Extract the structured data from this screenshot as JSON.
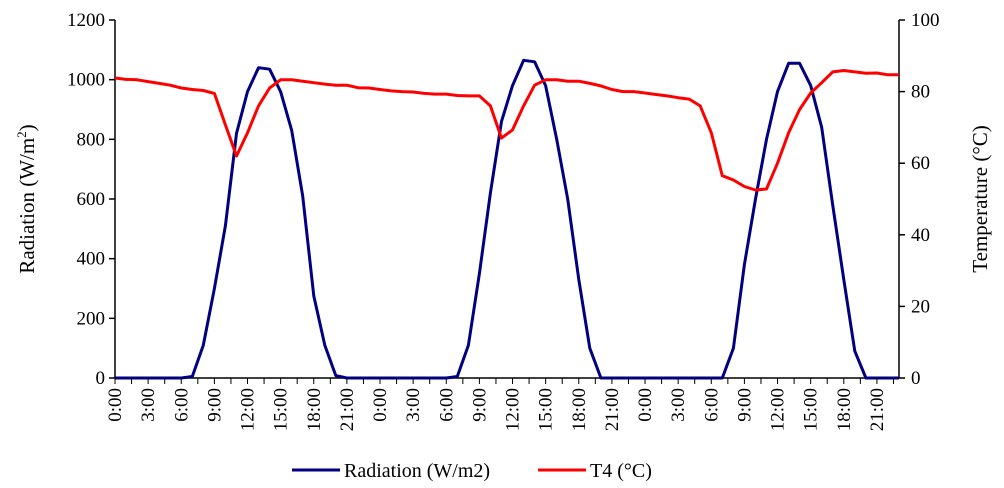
{
  "chart_data": {
    "type": "line",
    "title": "",
    "xlabel": "",
    "ylabel_left": "Radiation (W/m",
    "ylabel_left_sup": "2",
    "ylabel_left_tail": ")",
    "ylabel_right": "Temperature (°C)",
    "ylim_left": [
      0,
      1200
    ],
    "yticks_left": [
      "0",
      "200",
      "400",
      "600",
      "800",
      "1000",
      "1200"
    ],
    "ylim_right": [
      0,
      100
    ],
    "yticks_right": [
      "0",
      "20",
      "40",
      "60",
      "80",
      "100"
    ],
    "xtick_labels": [
      "0:00",
      "3:00",
      "6:00",
      "9:00",
      "12:00",
      "15:00",
      "18:00",
      "21:00",
      "0:00",
      "3:00",
      "6:00",
      "9:00",
      "12:00",
      "15:00",
      "18:00",
      "21:00",
      "0:00",
      "3:00",
      "6:00",
      "9:00",
      "12:00",
      "15:00",
      "18:00",
      "21:00"
    ],
    "x_hours_range": [
      0,
      71
    ],
    "legend_position": "bottom",
    "series": [
      {
        "name": "Radiation (W/m2)",
        "axis": "left",
        "color": "#000080",
        "x": [
          0,
          1,
          2,
          3,
          4,
          5,
          6,
          7,
          8,
          9,
          10,
          11,
          12,
          13,
          14,
          15,
          16,
          17,
          18,
          19,
          20,
          21,
          22,
          23,
          24,
          25,
          26,
          27,
          28,
          29,
          30,
          31,
          32,
          33,
          34,
          35,
          36,
          37,
          38,
          39,
          40,
          41,
          42,
          43,
          44,
          45,
          46,
          47,
          48,
          49,
          50,
          51,
          52,
          53,
          54,
          55,
          56,
          57,
          58,
          59,
          60,
          61,
          62,
          63,
          64,
          65,
          66,
          67,
          68,
          69,
          70,
          71
        ],
        "values": [
          0,
          0,
          0,
          0,
          0,
          0,
          0,
          5,
          110,
          300,
          510,
          820,
          960,
          1040,
          1035,
          960,
          830,
          610,
          275,
          110,
          8,
          0,
          0,
          0,
          0,
          0,
          0,
          0,
          0,
          0,
          0,
          5,
          110,
          350,
          620,
          860,
          980,
          1065,
          1060,
          980,
          800,
          600,
          330,
          100,
          0,
          0,
          0,
          0,
          0,
          0,
          0,
          0,
          0,
          0,
          0,
          0,
          100,
          380,
          600,
          800,
          960,
          1055,
          1055,
          980,
          840,
          580,
          330,
          90,
          0,
          0,
          0,
          0
        ]
      },
      {
        "name": "T4 (°C)",
        "axis": "right",
        "color": "#ff0000",
        "x": [
          0,
          1,
          2,
          3,
          4,
          5,
          6,
          7,
          8,
          9,
          10,
          11,
          12,
          13,
          14,
          15,
          16,
          17,
          18,
          19,
          20,
          21,
          22,
          23,
          24,
          25,
          26,
          27,
          28,
          29,
          30,
          31,
          32,
          33,
          34,
          35,
          36,
          37,
          38,
          39,
          40,
          41,
          42,
          43,
          44,
          45,
          46,
          47,
          48,
          49,
          50,
          51,
          52,
          53,
          54,
          55,
          56,
          57,
          58,
          59,
          60,
          61,
          62,
          63,
          64,
          65,
          66,
          67,
          68,
          69,
          70,
          71
        ],
        "values": [
          83.8,
          83.4,
          83.3,
          82.8,
          82.3,
          81.8,
          81.0,
          80.6,
          80.3,
          79.5,
          70.7,
          62.0,
          68.5,
          76.0,
          81.0,
          83.3,
          83.3,
          82.9,
          82.5,
          82.1,
          81.8,
          81.8,
          81.1,
          81.0,
          80.6,
          80.2,
          80.0,
          79.9,
          79.5,
          79.3,
          79.3,
          78.9,
          78.8,
          78.8,
          76.0,
          67.0,
          69.3,
          76.0,
          81.8,
          83.3,
          83.3,
          82.9,
          82.9,
          82.3,
          81.6,
          80.6,
          80.0,
          80.0,
          79.6,
          79.2,
          78.8,
          78.3,
          77.9,
          76.0,
          68.5,
          56.5,
          55.3,
          53.5,
          52.5,
          52.8,
          60.0,
          68.5,
          75.0,
          79.6,
          82.5,
          85.5,
          85.9,
          85.5,
          85.1,
          85.2,
          84.7,
          84.7
        ]
      }
    ]
  }
}
